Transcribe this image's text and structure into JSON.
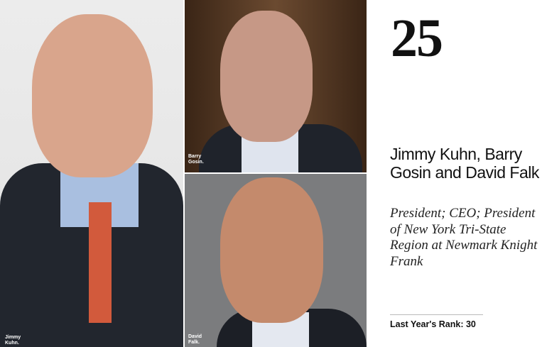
{
  "rank": "25",
  "names": "Jimmy Kuhn, Barry Gosin and David Falk",
  "titles": "President; CEO; President of New York Tri-State Region at Newmark Knight Frank",
  "last_year_rank": "Last Year's Rank: 30",
  "photos": [
    {
      "caption_line1": "Jimmy",
      "caption_line2": "Kuhn."
    },
    {
      "caption_line1": "Barry",
      "caption_line2": "Gosin."
    },
    {
      "caption_line1": "David",
      "caption_line2": "Falk."
    }
  ]
}
